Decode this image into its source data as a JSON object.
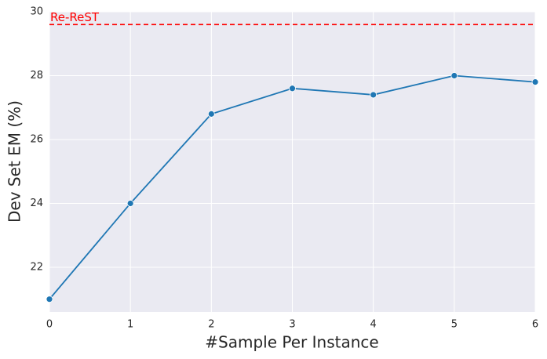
{
  "chart_data": {
    "type": "line",
    "xlabel": "#Sample Per Instance",
    "ylabel": "Dev Set EM (%)",
    "x": [
      0,
      1,
      2,
      3,
      4,
      5,
      6
    ],
    "series": [
      {
        "color": "#1f77b4",
        "values": [
          21.0,
          24.0,
          26.8,
          27.6,
          27.4,
          28.0,
          27.8
        ]
      }
    ],
    "xlim": [
      0,
      6
    ],
    "xticks": [
      0,
      1,
      2,
      3,
      4,
      5,
      6
    ],
    "ylim": [
      20.6,
      30
    ],
    "yticks": [
      22,
      24,
      26,
      28,
      30
    ],
    "grid": true,
    "reference_line": {
      "value": 29.6,
      "label": "Re-ReST",
      "color": "red"
    }
  }
}
